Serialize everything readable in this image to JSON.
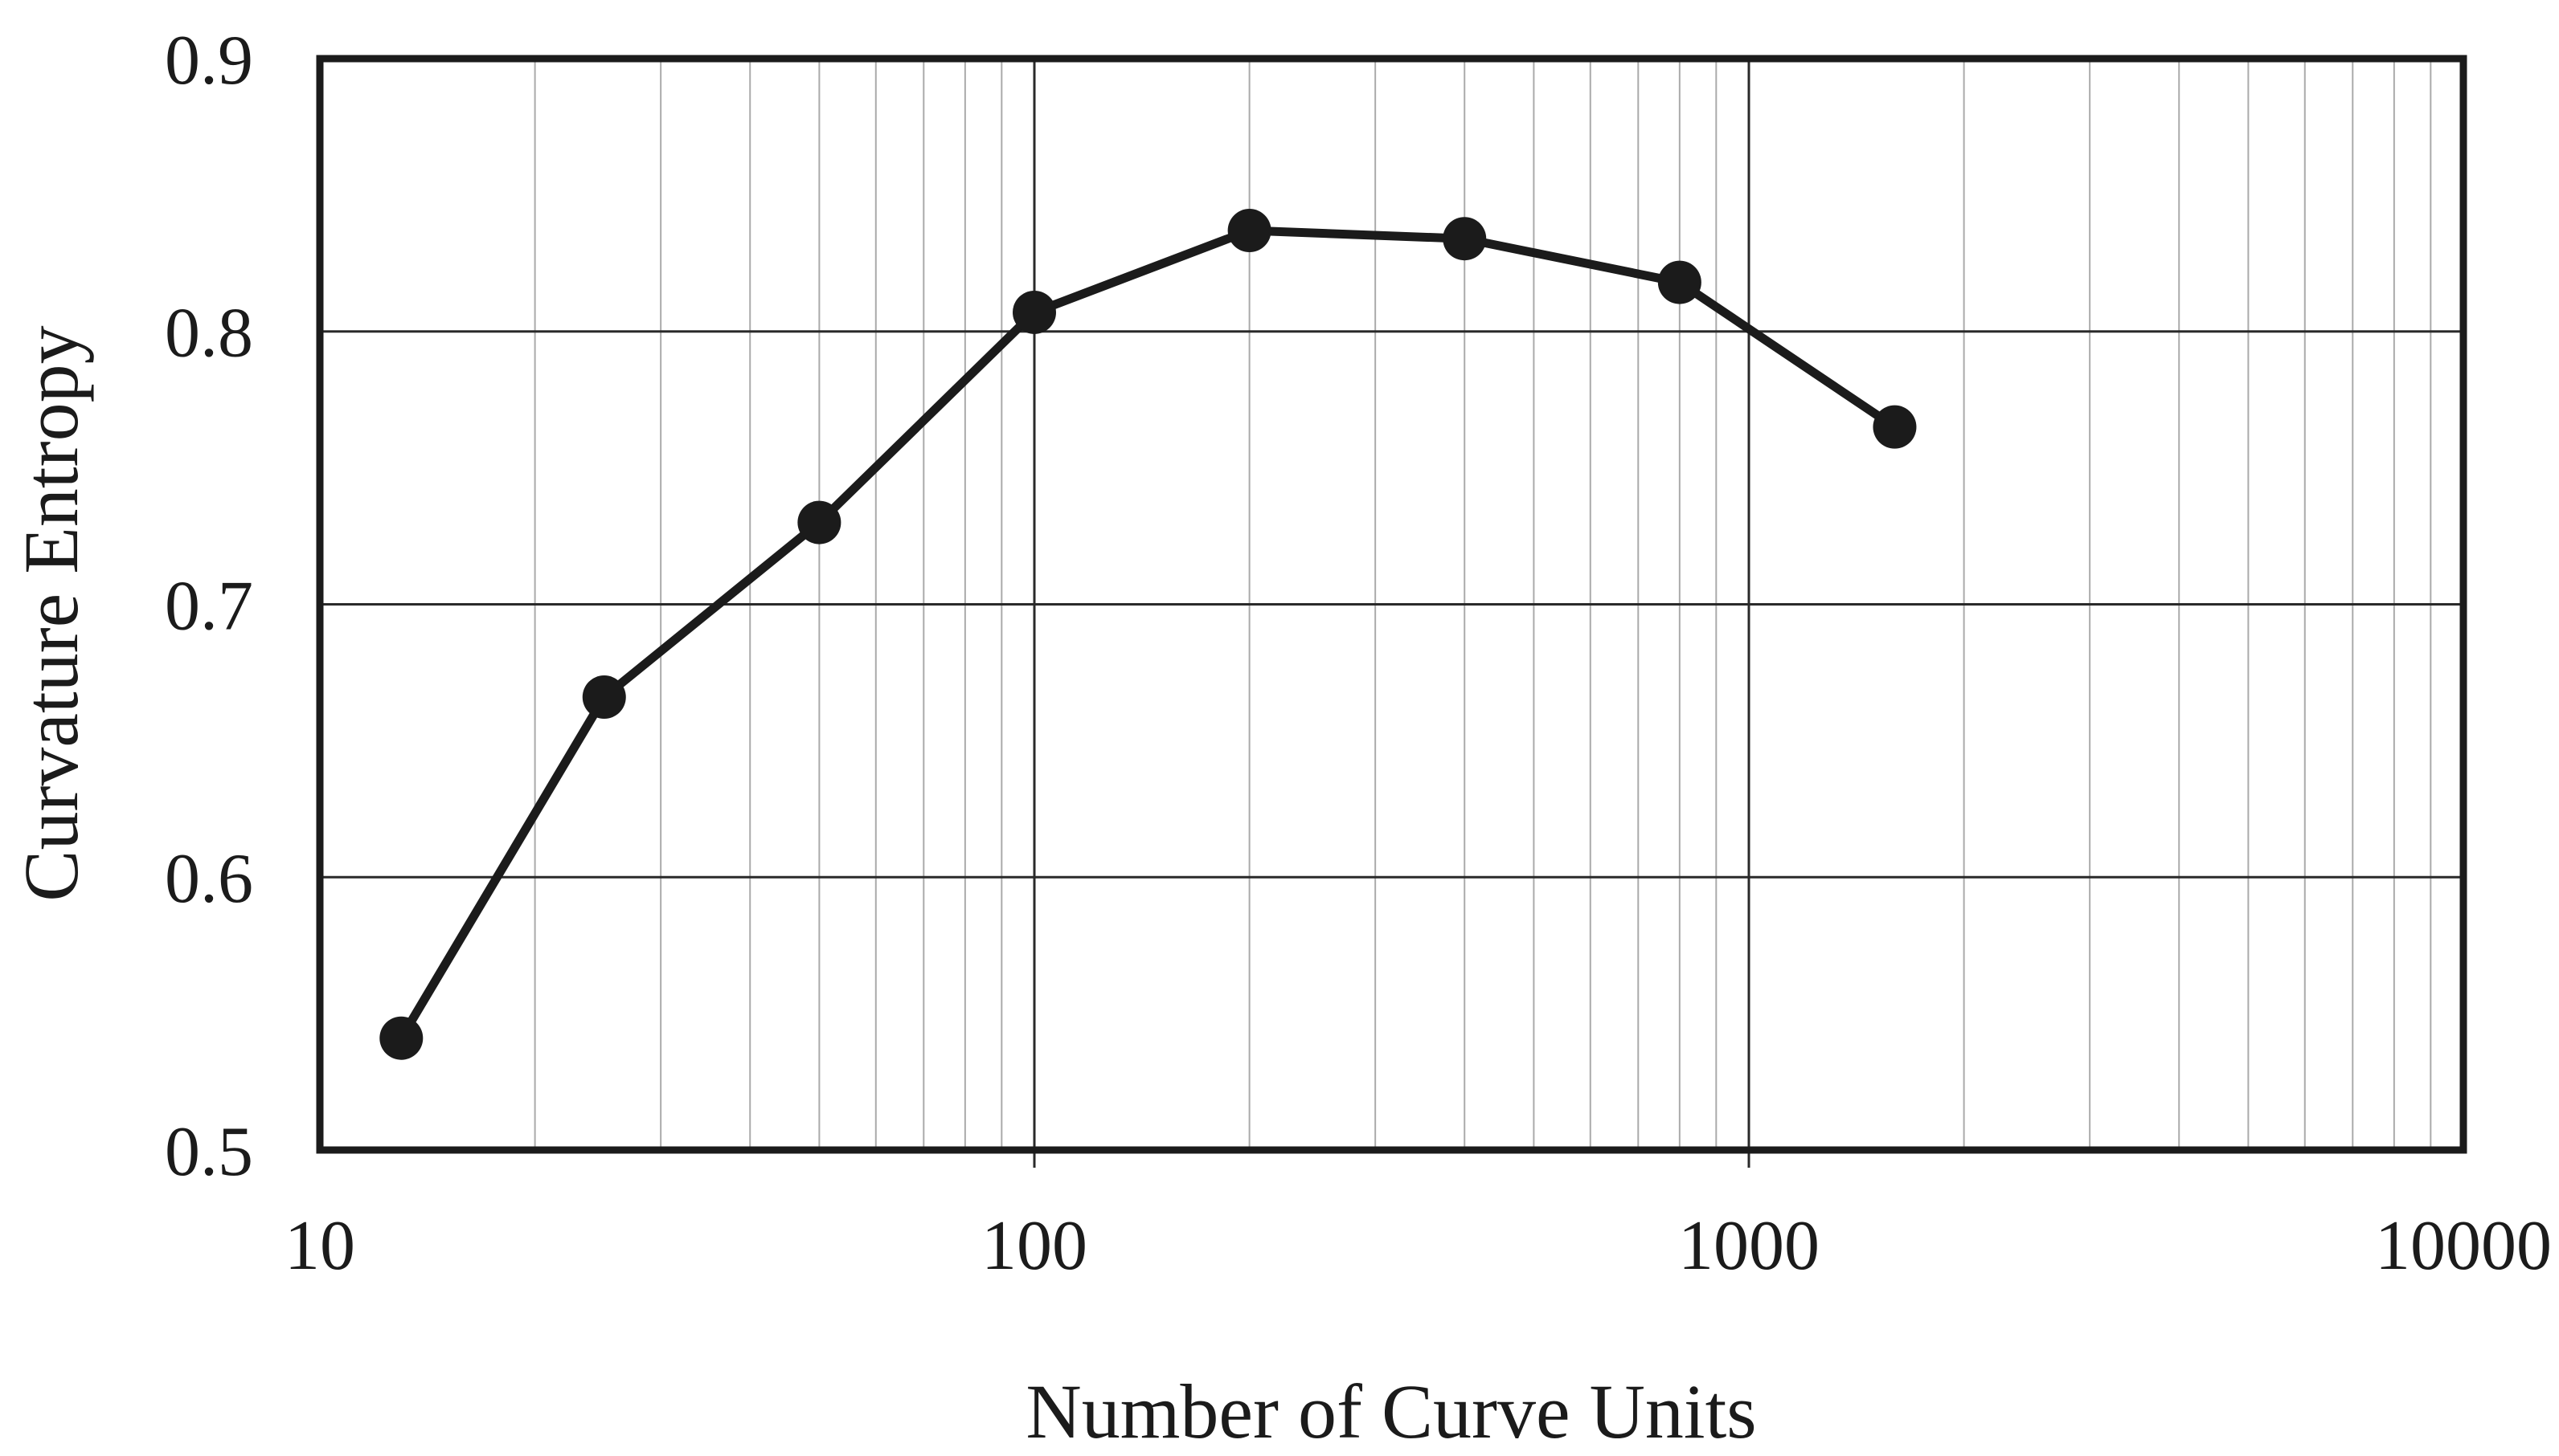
{
  "figure": {
    "background": "#ffffff",
    "ink_color": "#1b1b1b",
    "grid_minor_color": "#aaaaaa",
    "grid_major_color": "#2a2a2a"
  },
  "chart_data": {
    "type": "line",
    "title": "",
    "xlabel": "Number of Curve Units",
    "ylabel": "Curvature Entropy",
    "x_scale": "log",
    "xlim": [
      10,
      10000
    ],
    "ylim": [
      0.5,
      0.9
    ],
    "x_ticks": [
      10,
      100,
      1000,
      10000
    ],
    "x_tick_labels": [
      "10",
      "100",
      "1000",
      "10000"
    ],
    "y_ticks": [
      0.5,
      0.6,
      0.7,
      0.8,
      0.9
    ],
    "y_tick_labels": [
      "0.5",
      "0.6",
      "0.7",
      "0.8",
      "0.9"
    ],
    "grid": {
      "h_major_values": [
        0.6,
        0.7,
        0.8
      ],
      "v_major_values": [
        100,
        1000
      ],
      "v_minor_mantissas": [
        2,
        3,
        4,
        5,
        6,
        7,
        8,
        9
      ]
    },
    "legend": "none",
    "series": [
      {
        "name": "Curvature Entropy",
        "marker": "filled-circle",
        "color": "#1b1b1b",
        "points": [
          [
            13,
            0.541
          ],
          [
            25,
            0.666
          ],
          [
            50,
            0.73
          ],
          [
            100,
            0.807
          ],
          [
            200,
            0.837
          ],
          [
            400,
            0.834
          ],
          [
            800,
            0.818
          ],
          [
            1600,
            0.765
          ]
        ]
      }
    ]
  }
}
